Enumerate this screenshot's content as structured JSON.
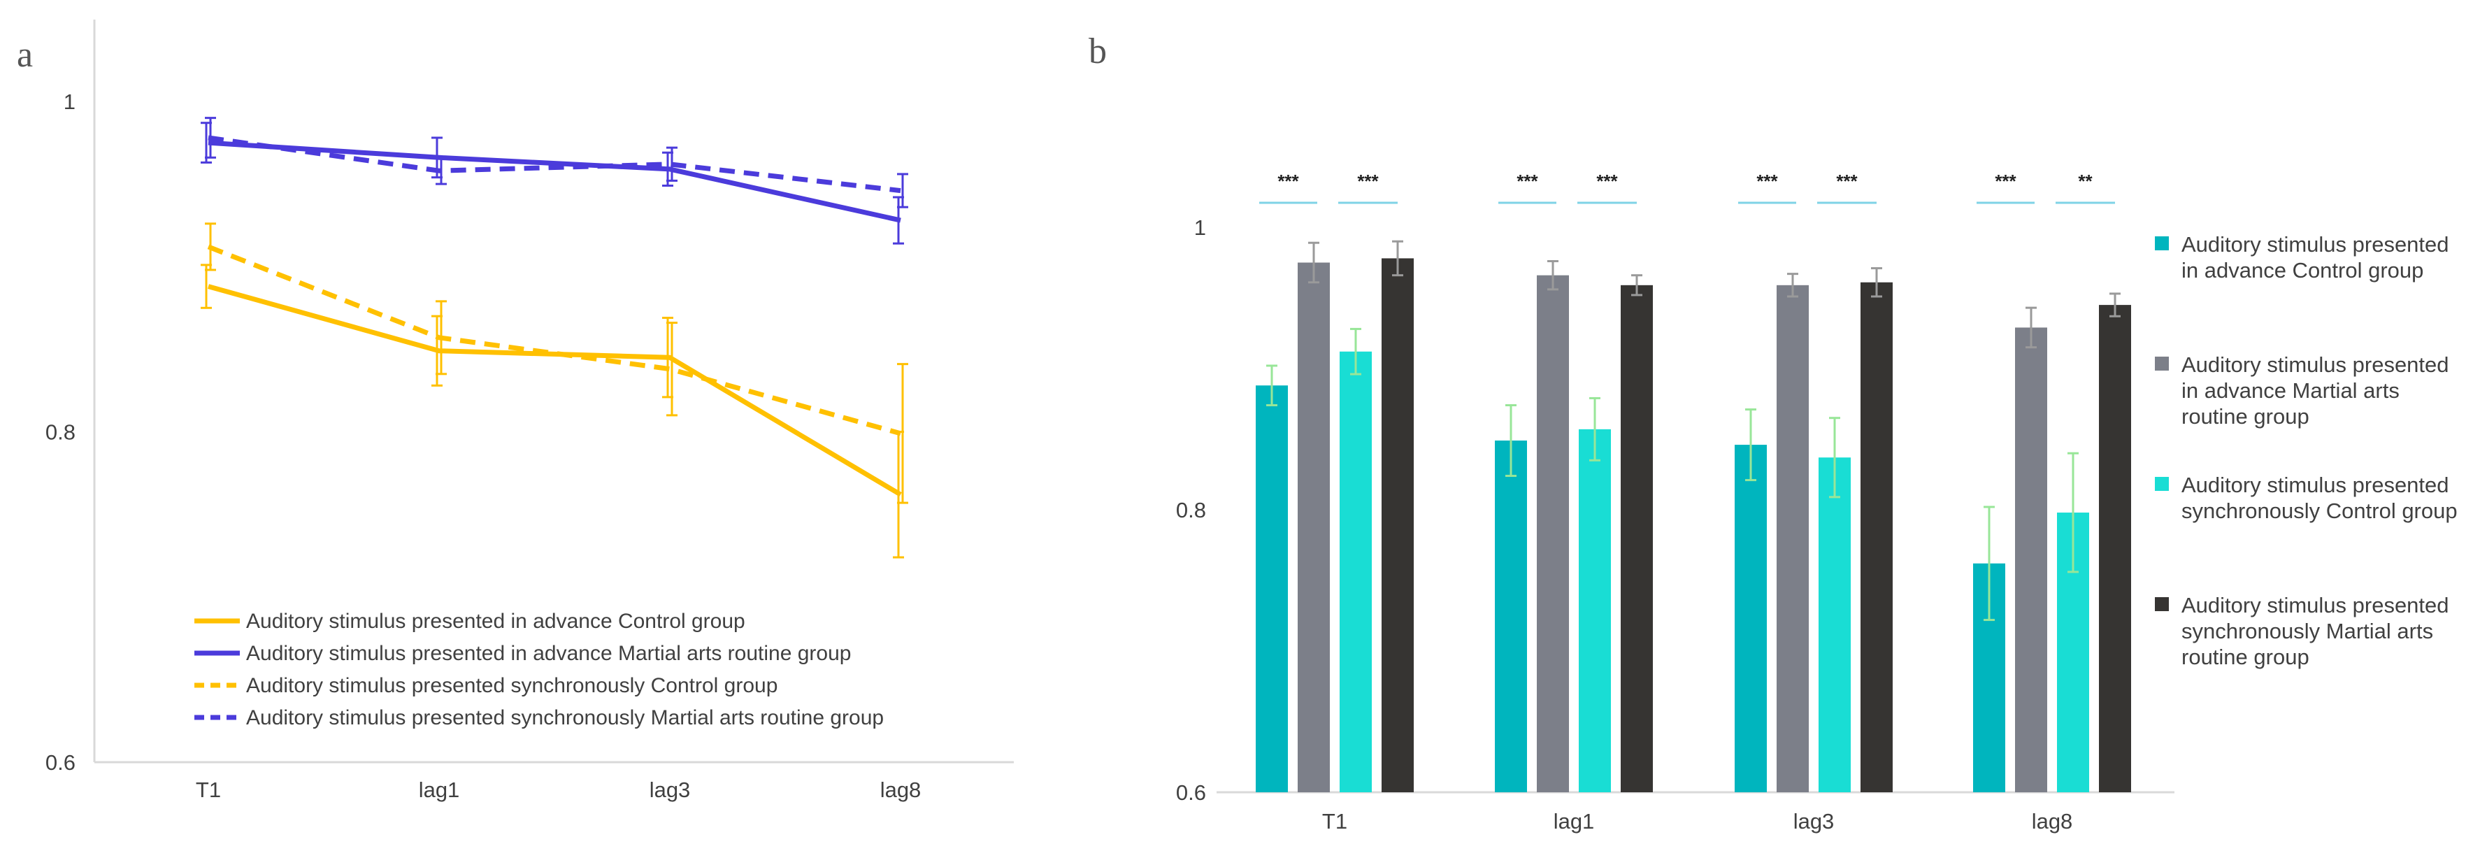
{
  "chart_data": [
    {
      "panel": "a",
      "type": "line",
      "categories": [
        "T1",
        "lag1",
        "lag3",
        "lag8"
      ],
      "yticks": [
        "0.6",
        "0.8",
        "1"
      ],
      "ylim": [
        0.6,
        1.05
      ],
      "series": [
        {
          "name": "Auditory stimulus presented in advance Control group",
          "color": "#FFC000",
          "dash": false,
          "values": [
            0.888,
            0.849,
            0.845,
            0.762
          ],
          "errors": [
            0.013,
            0.021,
            0.024,
            0.038
          ]
        },
        {
          "name": "Auditory stimulus presented in advance Martial arts routine group",
          "color": "#4B3BDB",
          "dash": false,
          "values": [
            0.975,
            0.966,
            0.959,
            0.928
          ],
          "errors": [
            0.012,
            0.012,
            0.01,
            0.014
          ]
        },
        {
          "name": "Auditory stimulus presented synchronously Control group",
          "color": "#FFC000",
          "dash": true,
          "values": [
            0.912,
            0.857,
            0.838,
            0.799
          ],
          "errors": [
            0.014,
            0.022,
            0.028,
            0.042
          ]
        },
        {
          "name": "Auditory stimulus presented synchronously Martial arts routine group",
          "color": "#4B3BDB",
          "dash": true,
          "values": [
            0.978,
            0.958,
            0.962,
            0.946
          ],
          "errors": [
            0.012,
            0.008,
            0.01,
            0.01
          ]
        }
      ]
    },
    {
      "panel": "b",
      "type": "bar",
      "categories": [
        "T1",
        "lag1",
        "lag3",
        "lag8"
      ],
      "yticks": [
        "0.6",
        "0.8",
        "1"
      ],
      "ylim": [
        0.6,
        1.0
      ],
      "series": [
        {
          "name_lines": [
            "Auditory stimulus presented",
            "in advance Control group"
          ],
          "color": "#00B5BE",
          "err_color": "#98E698",
          "values": [
            0.888,
            0.849,
            0.846,
            0.762
          ],
          "errors": [
            0.014,
            0.025,
            0.025,
            0.04
          ]
        },
        {
          "name_lines": [
            "Auditory stimulus presented",
            "in advance Martial arts",
            "routine group"
          ],
          "color": "#7C7F89",
          "err_color": "#9A9A9A",
          "values": [
            0.975,
            0.966,
            0.959,
            0.929
          ],
          "errors": [
            0.014,
            0.01,
            0.008,
            0.014
          ]
        },
        {
          "name_lines": [
            "Auditory stimulus presented",
            "synchronously Control group"
          ],
          "color": "#19DDD4",
          "err_color": "#98E698",
          "values": [
            0.912,
            0.857,
            0.837,
            0.798
          ],
          "errors": [
            0.016,
            0.022,
            0.028,
            0.042
          ]
        },
        {
          "name_lines": [
            "Auditory stimulus presented",
            "synchronously Martial arts",
            "routine group"
          ],
          "color": "#363432",
          "err_color": "#9A9A9A",
          "values": [
            0.978,
            0.959,
            0.961,
            0.945
          ],
          "errors": [
            0.012,
            0.007,
            0.01,
            0.008
          ]
        }
      ],
      "significance": [
        {
          "category": "T1",
          "left": "***",
          "right": "***"
        },
        {
          "category": "lag1",
          "left": "***",
          "right": "***"
        },
        {
          "category": "lag3",
          "left": "***",
          "right": "***"
        },
        {
          "category": "lag8",
          "left": "***",
          "right": "**"
        }
      ]
    }
  ]
}
